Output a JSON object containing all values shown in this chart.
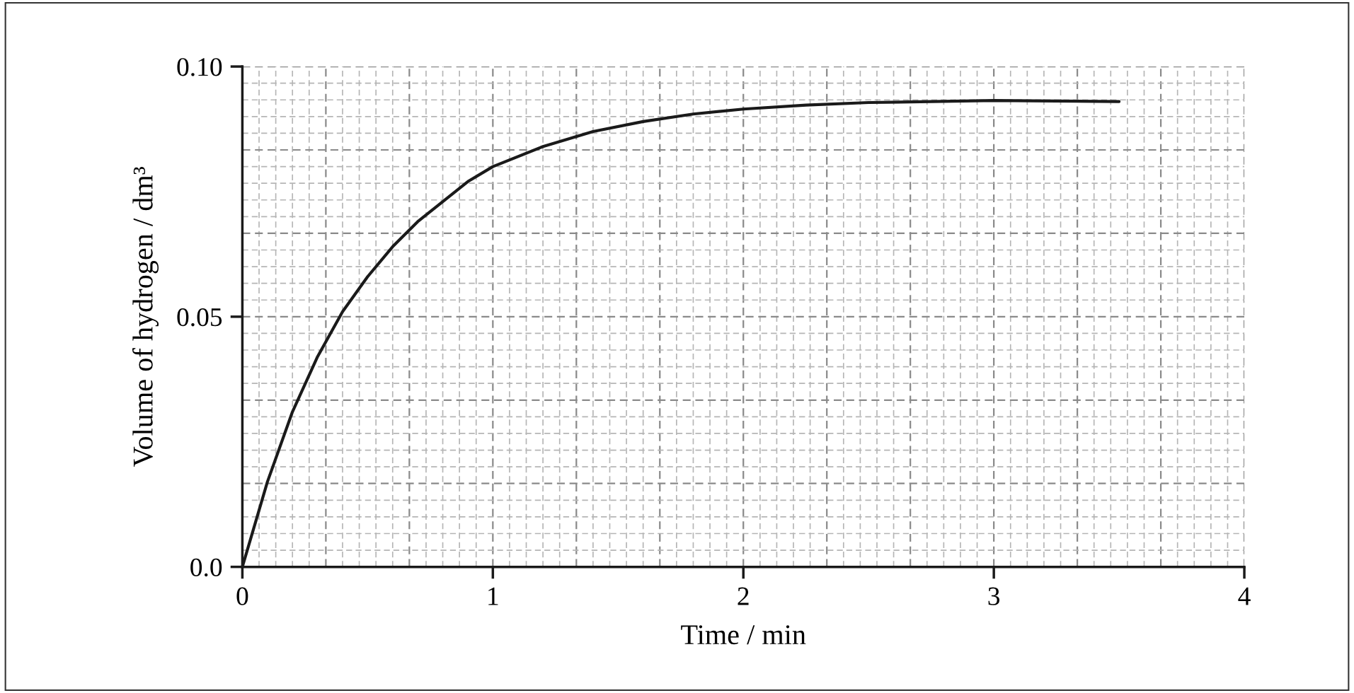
{
  "chart_data": {
    "type": "line",
    "xlabel": "Time / min",
    "ylabel": "Volume of hydrogen / dm³",
    "xlim": [
      0,
      4
    ],
    "ylim": [
      0,
      0.1
    ],
    "xticks": [
      0,
      1,
      2,
      3,
      4
    ],
    "yticks": [
      {
        "value": 0,
        "label": "0.0"
      },
      {
        "value": 0.05,
        "label": "0.05"
      },
      {
        "value": 0.1,
        "label": "0.10"
      }
    ],
    "grid": true,
    "marker": "none",
    "line_style": "solid",
    "series": [
      {
        "color": "#1a1a1a",
        "x": [
          0,
          0.1,
          0.2,
          0.3,
          0.4,
          0.5,
          0.6,
          0.7,
          0.8,
          0.9,
          1.0,
          1.2,
          1.4,
          1.6,
          1.8,
          2.0,
          2.25,
          2.5,
          2.75,
          3.0,
          3.25,
          3.5
        ],
        "values": [
          0,
          0.017,
          0.031,
          0.042,
          0.051,
          0.058,
          0.064,
          0.069,
          0.073,
          0.077,
          0.08,
          0.084,
          0.087,
          0.089,
          0.0905,
          0.0915,
          0.0923,
          0.0928,
          0.093,
          0.0932,
          0.0931,
          0.093
        ]
      }
    ]
  }
}
